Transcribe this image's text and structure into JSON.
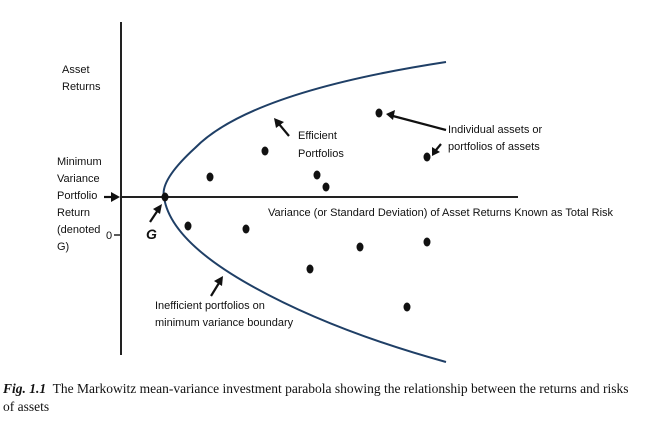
{
  "diagram": {
    "y_axis_label": [
      "Asset",
      "Returns"
    ],
    "min_var_label": [
      "Minimum",
      "Variance",
      "Portfolio",
      "Return",
      "(denoted",
      "G)"
    ],
    "zero_label": "0",
    "g_label": "G",
    "x_axis_label": "Variance (or Standard Deviation) of Asset Returns Known as Total Risk",
    "efficient_label": [
      "Efficient",
      "Portfolios"
    ],
    "individual_label": [
      "Individual assets or",
      "portfolios of assets"
    ],
    "inefficient_label": [
      "Inefficient portfolios on",
      "minimum variance boundary"
    ],
    "curve_color": "#1f3f66"
  },
  "caption": {
    "fig_number": "Fig. 1.1",
    "text": "The Markowitz mean-variance investment parabola showing the relationship between the returns and risks of assets"
  }
}
